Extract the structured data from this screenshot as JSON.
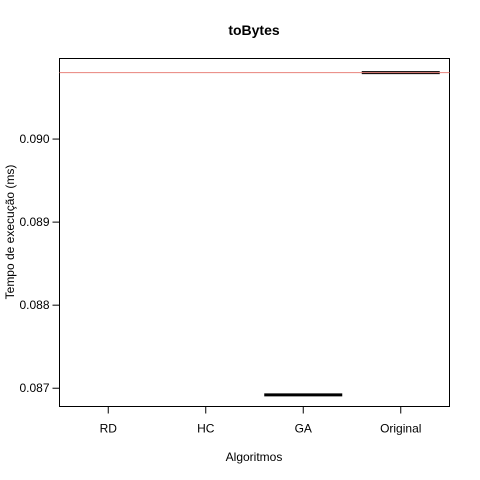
{
  "chart_data": {
    "type": "box",
    "title": "toBytes",
    "xlabel": "Algoritmos",
    "ylabel": "Tempo de execução (ms)",
    "categories": [
      "RD",
      "HC",
      "GA",
      "Original"
    ],
    "medians": [
      null,
      null,
      0.08692,
      0.0908
    ],
    "yticks": [
      "0.087",
      "0.088",
      "0.089",
      "0.090"
    ],
    "ylim": [
      0.08678,
      0.09097
    ],
    "reference_line": {
      "value": 0.0908,
      "color": "#e8837c"
    },
    "median_color": "#000000",
    "grid": false,
    "legend": "none"
  }
}
